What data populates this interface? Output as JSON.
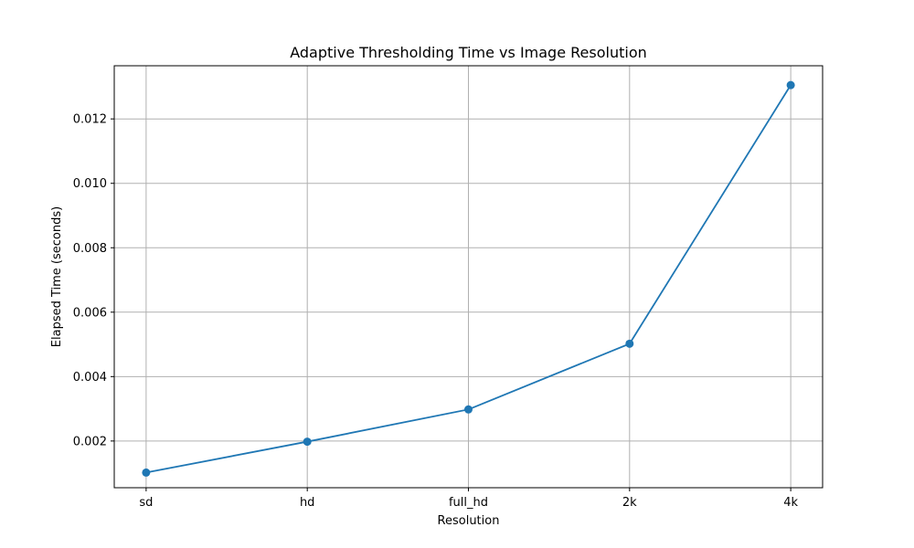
{
  "chart_data": {
    "type": "line",
    "title": "Adaptive Thresholding Time vs Image Resolution",
    "xlabel": "Resolution",
    "ylabel": "Elapsed Time (seconds)",
    "categories": [
      "sd",
      "hd",
      "full_hd",
      "2k",
      "4k"
    ],
    "series": [
      {
        "values": [
          0.00102,
          0.00198,
          0.00298,
          0.00502,
          0.01305
        ],
        "color": "#1f77b4",
        "marker": "circle"
      }
    ],
    "ylim": [
      0.00055,
      0.01365
    ],
    "yticks": [
      0.002,
      0.004,
      0.006,
      0.008,
      0.01,
      0.012
    ],
    "ytick_labels": [
      "0.002",
      "0.004",
      "0.006",
      "0.008",
      "0.010",
      "0.012"
    ],
    "grid": true,
    "legend": "none"
  }
}
